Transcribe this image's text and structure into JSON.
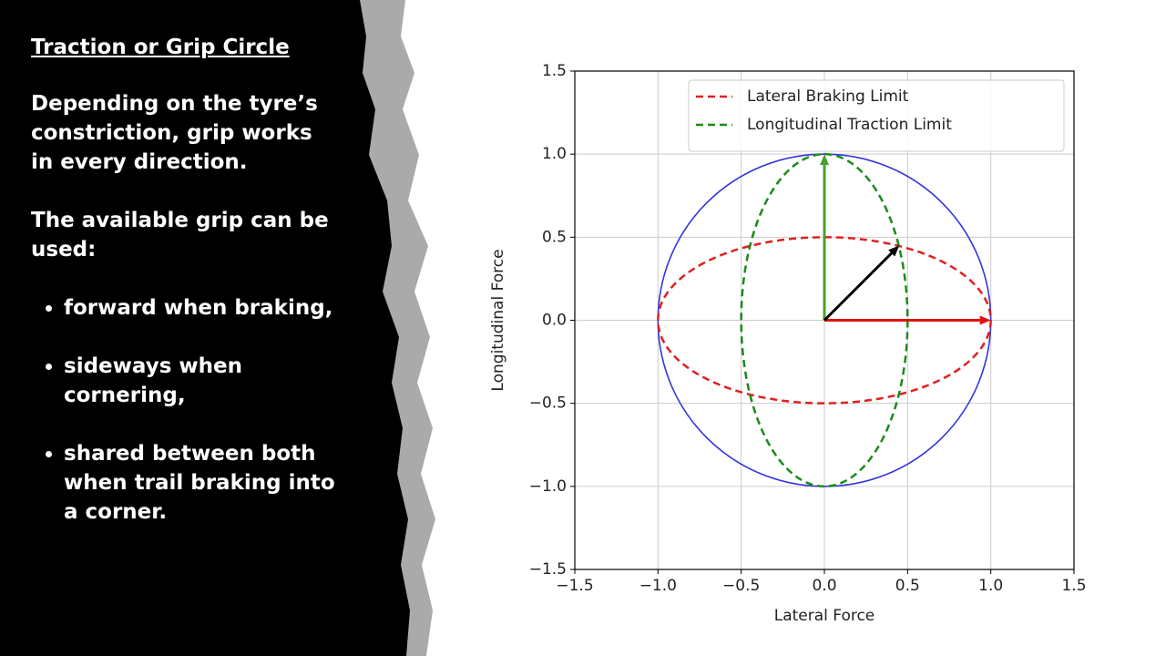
{
  "slide": {
    "title": "Traction or Grip Circle",
    "paragraphs": [
      "Depending on the tyre’s constriction, grip works in every direction.",
      "The available grip can be used:"
    ],
    "bullets": [
      "forward when braking,",
      "sideways when cornering,",
      "shared between both when trail braking into a corner."
    ]
  },
  "chart_data": {
    "type": "ellipse",
    "xlabel": "Lateral Force",
    "ylabel": "Longitudinal Force",
    "xlim": [
      -1.5,
      1.5
    ],
    "ylim": [
      -1.5,
      1.5
    ],
    "xticks": [
      {
        "value": -1.5,
        "label": "−1.5"
      },
      {
        "value": -1.0,
        "label": "−1.0"
      },
      {
        "value": -0.5,
        "label": "−0.5"
      },
      {
        "value": 0,
        "label": "0.0"
      },
      {
        "value": 0.5,
        "label": "0.5"
      },
      {
        "value": 1.0,
        "label": "1.0"
      },
      {
        "value": 1.5,
        "label": "1.5"
      }
    ],
    "yticks": [
      {
        "value": -1.5,
        "label": "−1.5"
      },
      {
        "value": -1.0,
        "label": "−1.0"
      },
      {
        "value": -0.5,
        "label": "−0.5"
      },
      {
        "value": 0,
        "label": "0.0"
      },
      {
        "value": 0.5,
        "label": "0.5"
      },
      {
        "value": 1.0,
        "label": "1.0"
      },
      {
        "value": 1.5,
        "label": "1.5"
      }
    ],
    "grid": true,
    "legend": "upper right",
    "series": [
      {
        "color": "#3333dd",
        "dashed": false,
        "center": [
          0,
          0
        ],
        "radii": [
          1,
          1
        ]
      },
      {
        "name": "Lateral Braking Limit",
        "color": "#e02020",
        "dashed": true,
        "center": [
          0,
          0
        ],
        "radii": [
          1,
          0.5
        ]
      },
      {
        "name": "Longitudinal Traction Limit",
        "color": "#1a8a1a",
        "dashed": true,
        "center": [
          0,
          0
        ],
        "radii": [
          0.5,
          1
        ]
      }
    ],
    "arrows": [
      {
        "color": "#e01010",
        "x": [
          0,
          1
        ],
        "y": [
          0,
          0
        ]
      },
      {
        "color": "#4aa02a",
        "x": [
          0,
          0
        ],
        "y": [
          0,
          1
        ]
      },
      {
        "color": "#000000",
        "x": [
          0,
          0.45
        ],
        "y": [
          0,
          0.45
        ]
      }
    ]
  }
}
